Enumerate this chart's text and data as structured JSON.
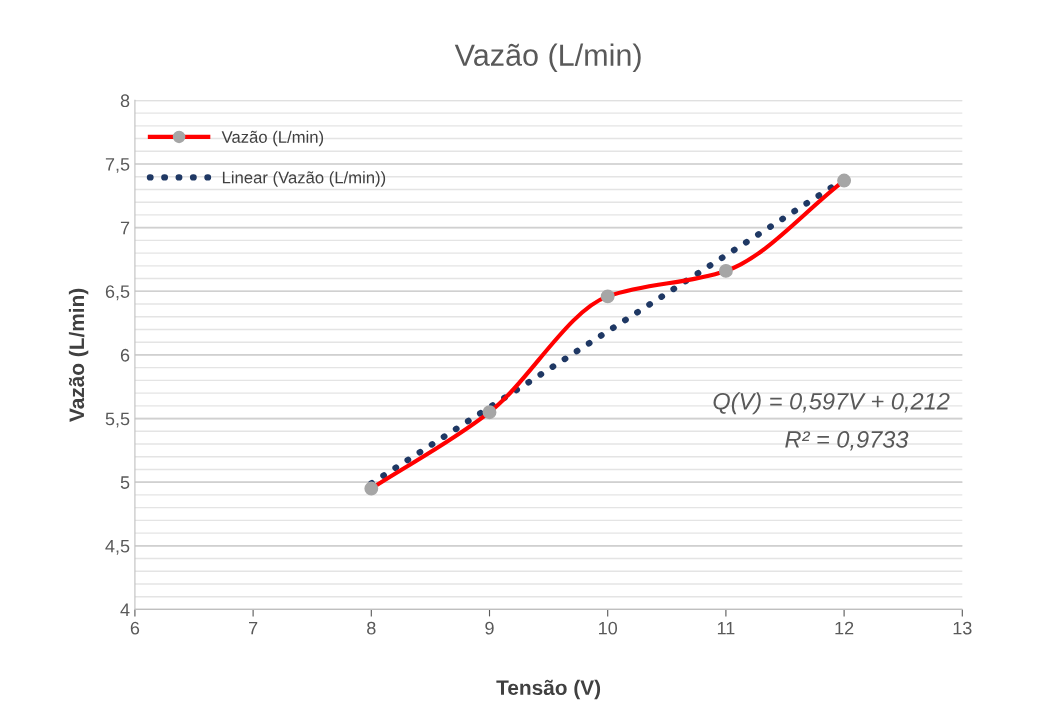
{
  "chart_data": {
    "type": "line",
    "title": "Vazão (L/min)",
    "xlabel": "Tensão (V)",
    "ylabel": "Vazão (L/min)",
    "series": [
      {
        "name": "Vazão (L/min)",
        "color": "#ff0000",
        "marker": "circle",
        "colors": [
          "#a6a6a6",
          "#a6a6a6",
          "#a6a6a6",
          "#a6a6a6",
          "#a6a6a6"
        ],
        "line_style": "solid",
        "x": [
          8,
          9,
          10,
          11,
          12
        ],
        "values": [
          4.95,
          5.55,
          6.46,
          6.66,
          7.37
        ]
      },
      {
        "name": "Linear (Vazão (L/min))",
        "color": "#1f3864",
        "marker": "none",
        "line_style": "dotted",
        "x": [
          8,
          12
        ],
        "values": [
          4.99,
          7.38
        ]
      }
    ],
    "xlim": [
      6,
      13
    ],
    "xticks": [
      6,
      7,
      8,
      9,
      10,
      11,
      12,
      13
    ],
    "ylim": [
      4,
      8
    ],
    "yticks": [
      4,
      {
        "value": 4.5,
        "label": "4,5"
      },
      5,
      {
        "value": 5.5,
        "label": "5,5"
      },
      6,
      {
        "value": 6.5,
        "label": "6,5"
      },
      7,
      {
        "value": 7.5,
        "label": "7,5"
      },
      8
    ],
    "grid": "y",
    "legend": "top left",
    "annotations": [
      "Q(V) = 0,597V + 0,212",
      "R² = 0,9733"
    ]
  }
}
